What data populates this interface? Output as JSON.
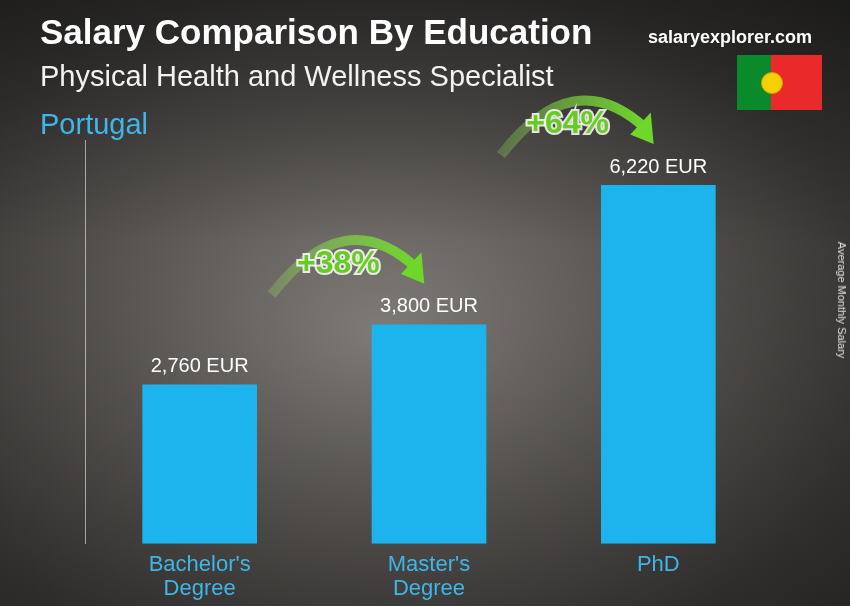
{
  "chart_data": {
    "type": "bar",
    "title": "Salary Comparison By Education",
    "subtitle": "Physical Health and Wellness Specialist",
    "country": "Portugal",
    "source": "salaryexplorer.com",
    "y_label": "Average Monthly Salary",
    "categories": [
      "Bachelor's Degree",
      "Master's Degree",
      "PhD"
    ],
    "values": [
      2760,
      3800,
      6220
    ],
    "value_labels": [
      "2,760 EUR",
      "3,800 EUR",
      "6,220 EUR"
    ],
    "data_labels": true,
    "color": "#1db3ec",
    "ylim": [
      0,
      7000
    ],
    "grid": false,
    "tick_labels": "x",
    "annotations": [
      "+38%",
      "+64%"
    ]
  }
}
